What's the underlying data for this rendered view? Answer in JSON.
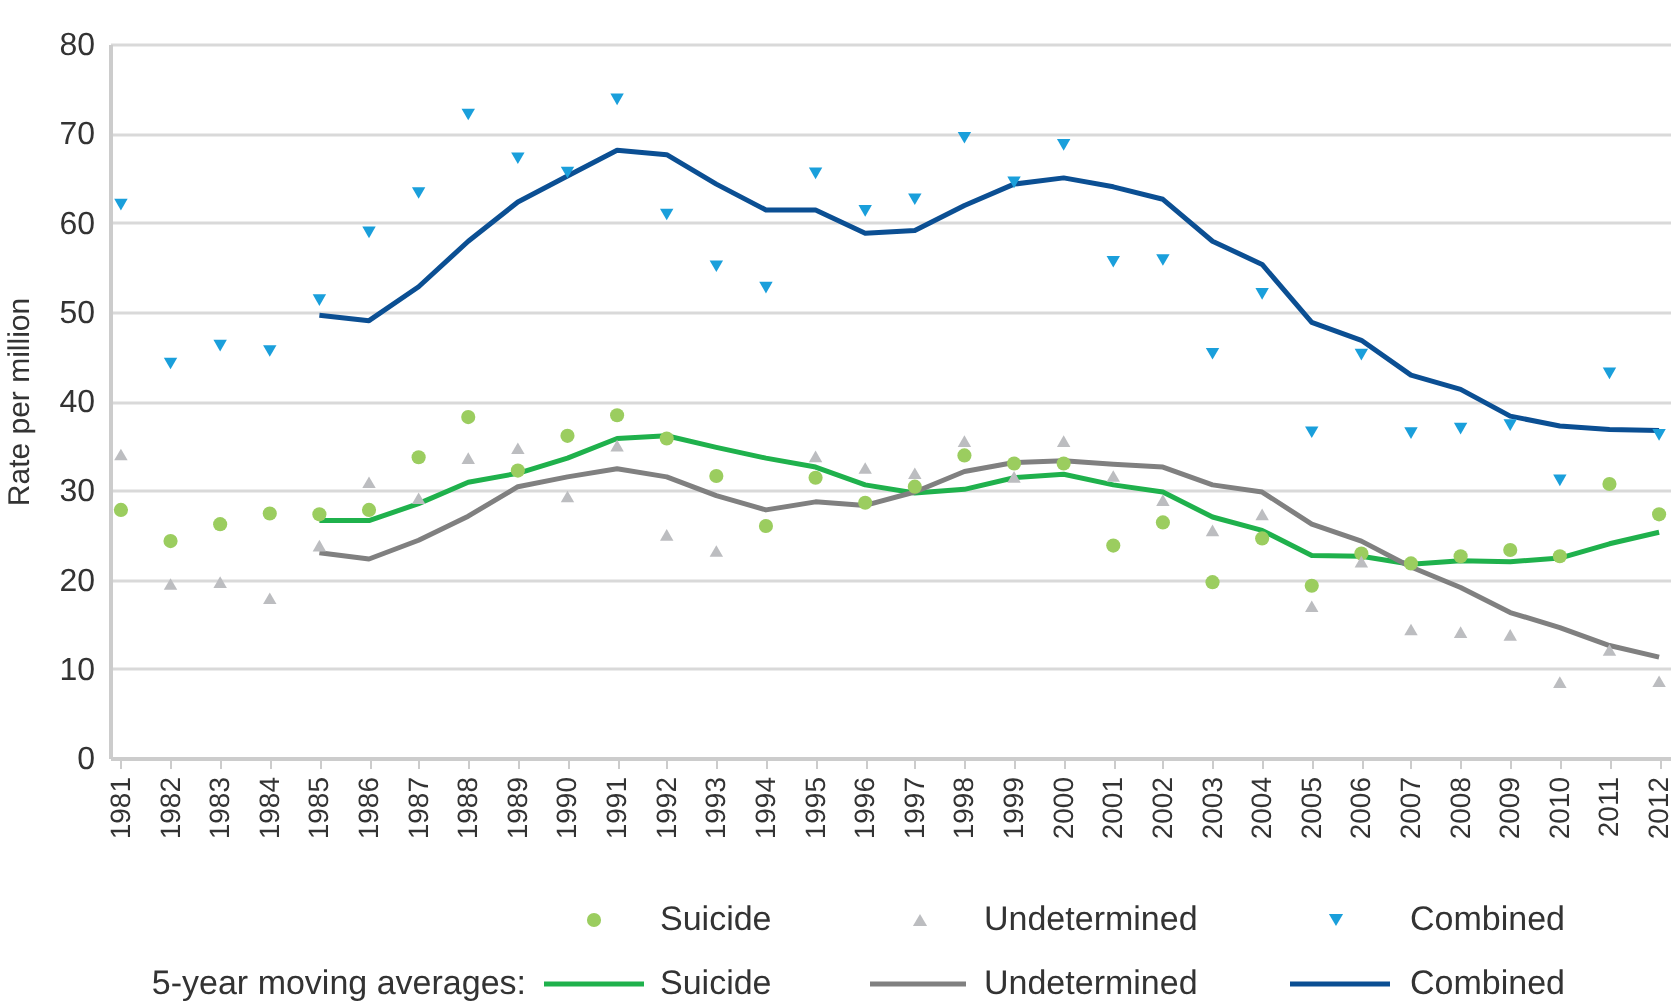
{
  "chart_data": {
    "type": "line",
    "ylabel": "Rate per million",
    "legend_title": "5-year moving averages:",
    "legend": "bottom",
    "grid": "y",
    "categories": [
      "1981",
      "1982",
      "1983",
      "1984",
      "1985",
      "1986",
      "1987",
      "1988",
      "1989",
      "1990",
      "1991",
      "1992",
      "1993",
      "1994",
      "1995",
      "1996",
      "1997",
      "1998",
      "1999",
      "2000",
      "2001",
      "2002",
      "2003",
      "2004",
      "2005",
      "2006",
      "2007",
      "2008",
      "2009",
      "2010",
      "2011",
      "2012"
    ],
    "ylim": [
      0,
      80
    ],
    "yticks": [
      0,
      10,
      20,
      30,
      40,
      50,
      60,
      70,
      80
    ],
    "series": [
      {
        "name": "Suicide",
        "type": "scatter",
        "marker": "circle",
        "color": "#9bcd5f",
        "values": [
          27.8,
          24.3,
          26.2,
          27.4,
          27.3,
          27.8,
          33.7,
          38.2,
          32.2,
          36.1,
          38.4,
          35.8,
          31.6,
          26.0,
          31.4,
          28.6,
          30.4,
          33.9,
          33.0,
          33.0,
          23.8,
          26.4,
          19.7,
          24.6,
          19.3,
          22.9,
          21.8,
          22.6,
          23.3,
          22.6,
          30.7,
          27.3
        ]
      },
      {
        "name": "Undetermined",
        "type": "scatter",
        "marker": "triangle",
        "color": "#bcbdc0",
        "values": [
          34.0,
          19.5,
          19.7,
          17.9,
          23.8,
          30.9,
          29.1,
          33.6,
          34.7,
          29.3,
          35.0,
          25.0,
          23.2,
          null,
          33.8,
          32.5,
          31.9,
          35.5,
          31.5,
          35.5,
          31.6,
          28.9,
          25.5,
          27.3,
          17.0,
          22.0,
          14.4,
          14.1,
          13.8,
          8.5,
          12.1,
          8.6
        ]
      },
      {
        "name": "Combined",
        "type": "scatter",
        "marker": "triangle-down",
        "color": "#1a9fdb",
        "values": [
          62.0,
          44.2,
          46.2,
          45.6,
          51.3,
          58.9,
          63.3,
          72.1,
          67.2,
          65.6,
          73.8,
          60.9,
          55.1,
          52.7,
          65.5,
          61.3,
          62.6,
          69.5,
          64.5,
          68.7,
          55.6,
          55.8,
          45.3,
          52.0,
          36.5,
          45.2,
          36.4,
          36.9,
          37.3,
          31.1,
          43.1,
          36.2
        ]
      },
      {
        "name": "Suicide",
        "color": "#1fb14c",
        "values": [
          null,
          null,
          null,
          null,
          26.6,
          26.6,
          28.5,
          30.9,
          31.9,
          33.6,
          35.8,
          36.1,
          34.8,
          33.6,
          32.6,
          30.6,
          29.7,
          30.1,
          31.4,
          31.8,
          30.6,
          29.8,
          27.0,
          25.5,
          22.7,
          22.6,
          21.7,
          22.1,
          22.0,
          22.4,
          24.0,
          25.3
        ]
      },
      {
        "name": "Undetermined",
        "color": "#808080",
        "values": [
          null,
          null,
          null,
          null,
          23.0,
          22.3,
          24.4,
          27.1,
          30.4,
          31.5,
          32.4,
          31.5,
          29.4,
          27.8,
          28.7,
          28.3,
          29.8,
          32.1,
          33.1,
          33.3,
          32.9,
          32.6,
          30.6,
          29.8,
          26.2,
          24.3,
          21.4,
          19.1,
          16.3,
          14.6,
          12.6,
          11.3
        ]
      },
      {
        "name": "Combined",
        "color": "#0b4f93",
        "values": [
          null,
          null,
          null,
          null,
          49.6,
          49.0,
          52.8,
          57.9,
          62.3,
          65.2,
          68.1,
          67.6,
          64.3,
          61.4,
          61.4,
          58.8,
          59.1,
          61.9,
          64.3,
          65.0,
          64.0,
          62.6,
          57.9,
          55.3,
          48.8,
          46.8,
          42.9,
          41.3,
          38.3,
          37.2,
          36.8,
          36.7
        ]
      }
    ]
  }
}
